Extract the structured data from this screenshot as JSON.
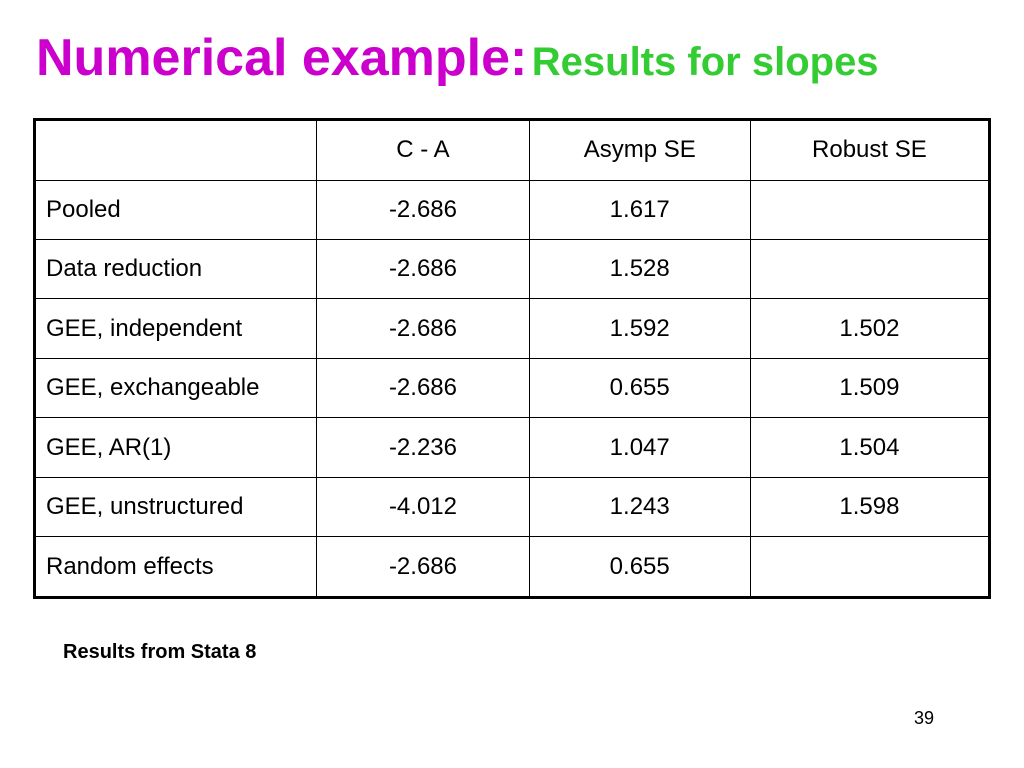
{
  "title": {
    "main": "Numerical example:",
    "sub": "Results for slopes",
    "main_color": "#cc00cc",
    "sub_color": "#33cc33"
  },
  "table": {
    "headers": [
      "",
      "C - A",
      "Asymp SE",
      "Robust SE"
    ],
    "rows": [
      [
        "Pooled",
        "-2.686",
        "1.617",
        ""
      ],
      [
        "Data reduction",
        "-2.686",
        "1.528",
        ""
      ],
      [
        "GEE, independent",
        "-2.686",
        "1.592",
        "1.502"
      ],
      [
        "GEE, exchangeable",
        "-2.686",
        "0.655",
        "1.509"
      ],
      [
        "GEE, AR(1)",
        "-2.236",
        "1.047",
        "1.504"
      ],
      [
        "GEE, unstructured",
        "-4.012",
        "1.243",
        "1.598"
      ],
      [
        "Random effects",
        "-2.686",
        "0.655",
        ""
      ]
    ]
  },
  "footnote": "Results from Stata 8",
  "page_number": "39"
}
